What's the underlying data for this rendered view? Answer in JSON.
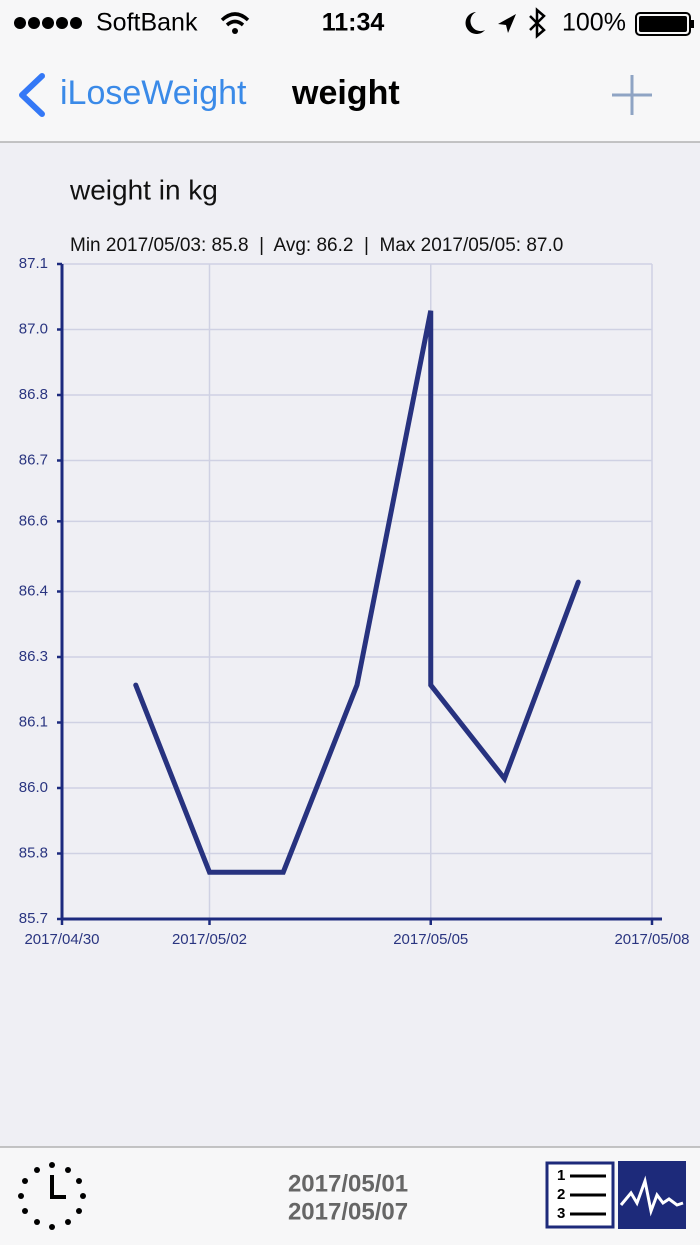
{
  "status_bar": {
    "carrier": "SoftBank",
    "time": "11:34",
    "battery": "100%"
  },
  "nav_bar": {
    "back": "iLoseWeight",
    "title": "weight"
  },
  "chart_data": {
    "type": "line",
    "title": "weight in kg",
    "subtitle": "Min 2017/05/03: 85.8  |  Avg: 86.2  |  Max 2017/05/05: 87.0",
    "x": [
      "2017/05/01",
      "2017/05/02",
      "2017/05/03",
      "2017/05/04",
      "2017/05/05",
      "2017/05/05",
      "2017/05/06",
      "2017/05/07"
    ],
    "series": [
      {
        "name": "weight",
        "color": "#27327f",
        "values": [
          86.2,
          85.8,
          85.8,
          86.2,
          87.0,
          86.2,
          86.0,
          86.42
        ]
      }
    ],
    "xlim": [
      "2017/04/30",
      "2017/05/08"
    ],
    "xticks": [
      "2017/04/30",
      "2017/05/02",
      "2017/05/05",
      "2017/05/08"
    ],
    "ylim": [
      85.7,
      87.1
    ],
    "yticks": [
      85.7,
      {
        "value": 85.84,
        "label": "85.8"
      },
      {
        "value": 85.98,
        "label": "86.0"
      },
      {
        "value": 86.12,
        "label": "86.1"
      },
      {
        "value": 86.26,
        "label": "86.3"
      },
      86.4,
      {
        "value": 86.55,
        "label": "86.6"
      },
      {
        "value": 86.68,
        "label": "86.7"
      },
      {
        "value": 86.82,
        "label": "86.8"
      },
      {
        "value": 86.96,
        "label": "87.0"
      },
      87.1
    ],
    "grid": true
  },
  "footer": {
    "start_date": "2017/05/01",
    "end_date": "2017/05/07"
  }
}
